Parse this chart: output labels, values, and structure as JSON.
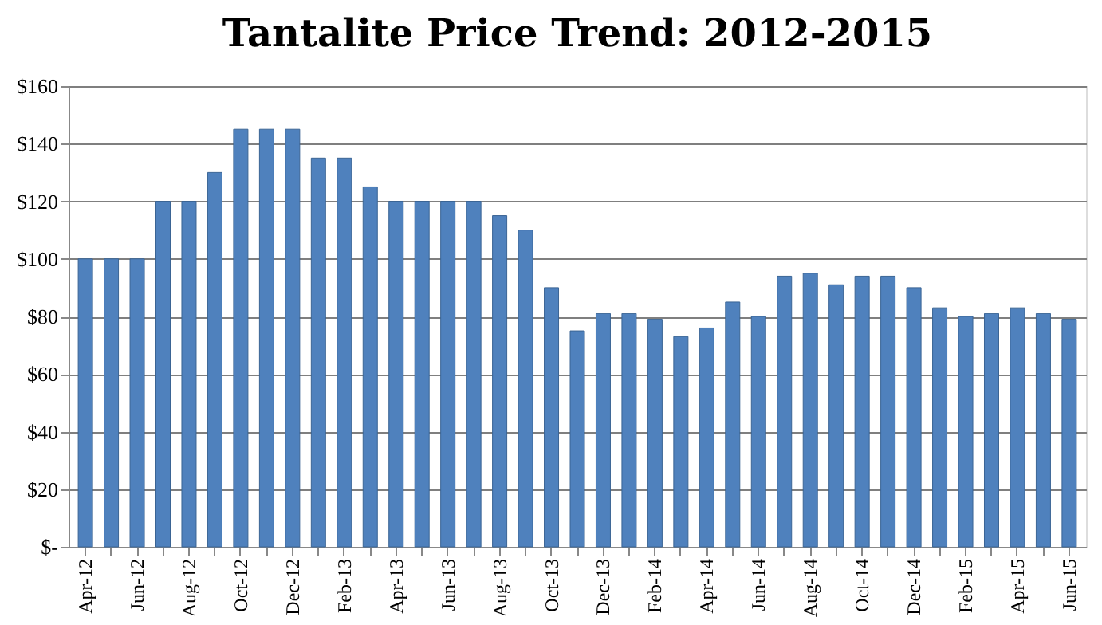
{
  "chart_data": {
    "type": "bar",
    "title": "Tantalite Price Trend: 2012-2015",
    "categories": [
      "Apr-12",
      null,
      "Jun-12",
      null,
      "Aug-12",
      null,
      "Oct-12",
      null,
      "Dec-12",
      null,
      "Feb-13",
      null,
      "Apr-13",
      null,
      "Jun-13",
      null,
      "Aug-13",
      null,
      "Oct-13",
      null,
      "Dec-13",
      null,
      "Feb-14",
      null,
      "Apr-14",
      null,
      "Jun-14",
      null,
      "Aug-14",
      null,
      "Oct-14",
      null,
      "Dec-14",
      null,
      "Feb-15",
      null,
      "Apr-15",
      null,
      "Jun-15"
    ],
    "values": [
      100,
      100,
      100,
      120,
      120,
      130,
      145,
      145,
      145,
      135,
      135,
      125,
      120,
      120,
      120,
      120,
      115,
      110,
      90,
      75,
      81,
      81,
      79,
      73,
      76,
      85,
      80,
      94,
      95,
      91,
      94,
      94,
      90,
      83,
      80,
      81,
      83,
      81,
      79
    ],
    "color": "#4f81bd",
    "ylim": [
      0,
      160
    ],
    "yticks": [
      {
        "value": 0,
        "label": "$-"
      },
      {
        "value": 20,
        "label": "$20"
      },
      {
        "value": 40,
        "label": "$40"
      },
      {
        "value": 60,
        "label": "$60"
      },
      {
        "value": 80,
        "label": "$80"
      },
      {
        "value": 100,
        "label": "$100"
      },
      {
        "value": 120,
        "label": "$120"
      },
      {
        "value": 140,
        "label": "$140"
      },
      {
        "value": 160,
        "label": "$160"
      }
    ],
    "grid": "y"
  }
}
